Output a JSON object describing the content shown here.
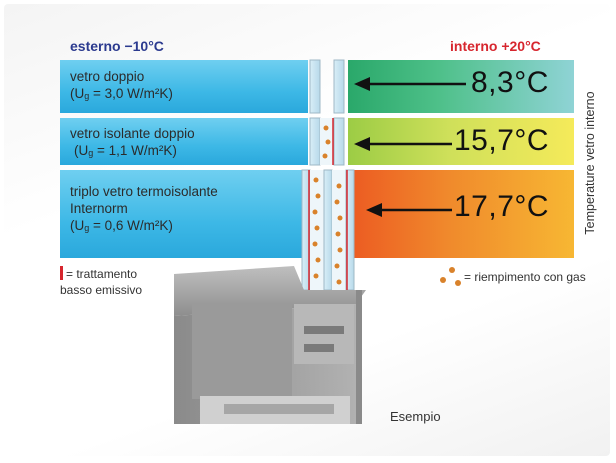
{
  "headers": {
    "outside": "esterno −10°C",
    "inside": "interno +20°C"
  },
  "u_symbol_sub": "g",
  "rows": [
    {
      "name": "vetro doppio",
      "u_value": "= 3,0 W/m²K",
      "temp": "8,3°C"
    },
    {
      "name": "vetro isolante doppio",
      "u_value": "= 1,1 W/m²K",
      "temp": "15,7°C"
    },
    {
      "name_line1": "triplo vetro termoisolante",
      "name_line2": "Internorm",
      "u_value": "= 0,6 W/m²K",
      "temp": "17,7°C"
    }
  ],
  "side_label": "Temperature vetro interno",
  "legend": {
    "coating_line1": "= trattamento",
    "coating_line2": "basso emissivo",
    "gas": "= riempimento con gas"
  },
  "example_label": "Esempio",
  "colors": {
    "outside_header": "#2b3a8f",
    "inside_header": "#d7262e",
    "coating_marker": "#d7262e",
    "gas_dot": "#d9822b"
  }
}
